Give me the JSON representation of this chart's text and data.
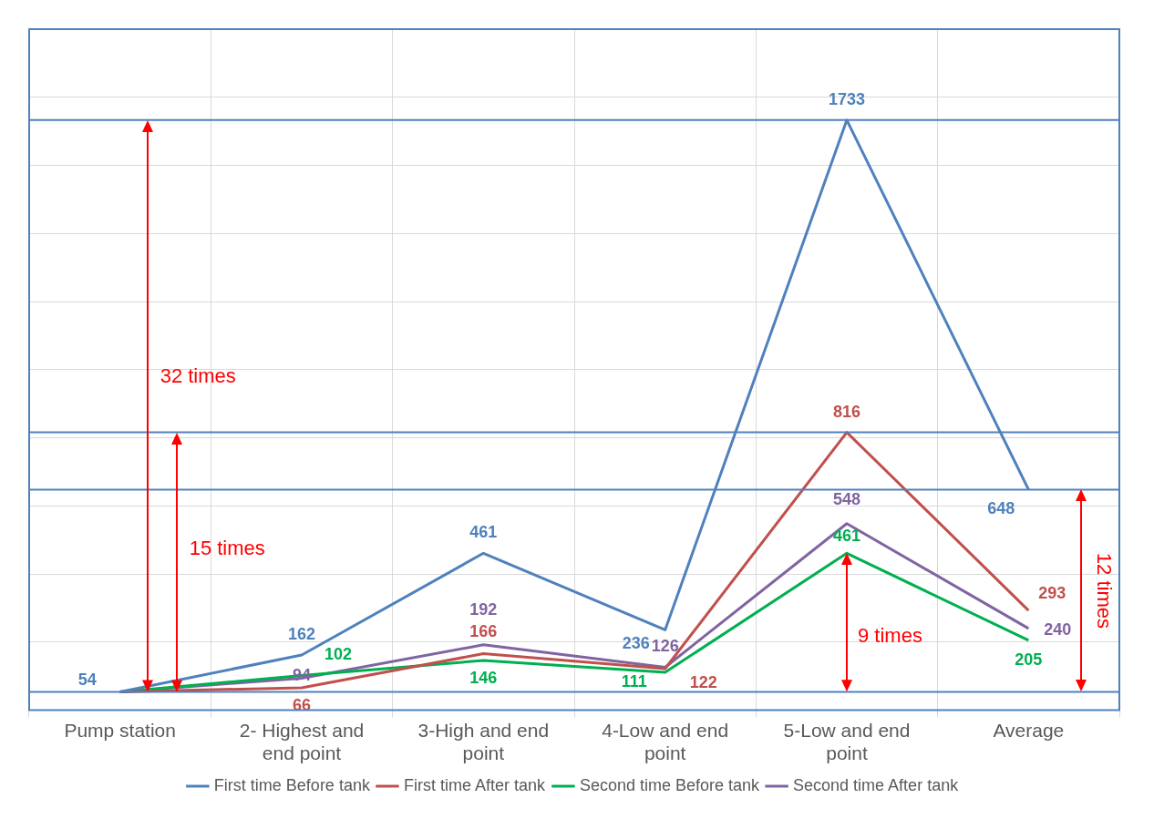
{
  "chart_data": {
    "type": "line",
    "categories": [
      "Pump station",
      "2- Highest and end point",
      "3-High and end point",
      "4-Low and end point",
      "5-Low and end point",
      "Average"
    ],
    "series": [
      {
        "name": "First time Before tank",
        "color": "#4f81bd",
        "values": [
          54,
          162,
          461,
          236,
          1733,
          648
        ],
        "value_labels": [
          "54",
          "162",
          "461",
          "236",
          "1733",
          "648"
        ]
      },
      {
        "name": "First time After tank",
        "color": "#c0504d",
        "values": [
          54,
          66,
          166,
          122,
          816,
          293
        ],
        "value_labels": [
          null,
          "66",
          "166",
          "122",
          "816",
          "293"
        ]
      },
      {
        "name": "Second time Before tank",
        "color": "#00b050",
        "values": [
          54,
          102,
          146,
          111,
          461,
          205
        ],
        "value_labels": [
          null,
          "102",
          "146",
          "111",
          "461",
          "205"
        ]
      },
      {
        "name": "Second time After tank",
        "color": "#8064a2",
        "values": [
          54,
          94,
          192,
          126,
          548,
          240
        ],
        "value_labels": [
          null,
          "94",
          "192",
          "126",
          "548",
          "240"
        ]
      }
    ],
    "ylim": [
      0,
      2000
    ],
    "yticks": [
      {
        "value": 0,
        "label": null
      },
      {
        "value": 200,
        "label": null
      },
      {
        "value": 400,
        "label": null
      },
      {
        "value": 600,
        "label": null
      },
      {
        "value": 800,
        "label": null
      },
      {
        "value": 1000,
        "label": null
      },
      {
        "value": 1200,
        "label": null
      },
      {
        "value": 1400,
        "label": null
      },
      {
        "value": 1600,
        "label": null
      },
      {
        "value": 1800,
        "label": null
      },
      {
        "value": 2000,
        "label": null
      }
    ],
    "tick_labels": "x",
    "grid": true,
    "legend": "bottom",
    "marker": "none",
    "line_style": "solid",
    "ref_lines": [
      {
        "axis": "y",
        "value": 1733,
        "color": "#4f81bd"
      },
      {
        "axis": "y",
        "value": 816,
        "color": "#4f81bd"
      },
      {
        "axis": "y",
        "value": 648,
        "color": "#4f81bd"
      },
      {
        "axis": "y",
        "value": 54,
        "color": "#4f81bd"
      }
    ],
    "annotations": [
      "32 times",
      "15 times",
      "9 times",
      "12 times"
    ]
  }
}
